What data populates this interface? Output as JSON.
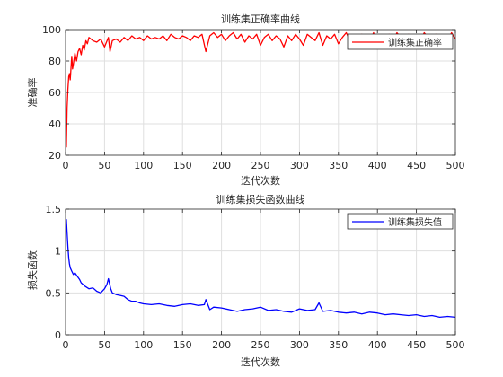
{
  "chart_data": [
    {
      "type": "line",
      "title": "训练集正确率曲线",
      "xlabel": "迭代次数",
      "ylabel": "准确率",
      "xlim": [
        0,
        500
      ],
      "ylim": [
        20,
        100
      ],
      "xticks": [
        0,
        50,
        100,
        150,
        200,
        250,
        300,
        350,
        400,
        450,
        500
      ],
      "yticks": [
        20,
        40,
        60,
        80,
        100
      ],
      "xtick_labels": [
        "0",
        "50",
        "100",
        "150",
        "200",
        "250",
        "300",
        "350",
        "400",
        "450",
        "500"
      ],
      "ytick_labels": [
        "20",
        "40",
        "60",
        "80",
        "100"
      ],
      "grid": true,
      "legend_position": "top-right",
      "series": [
        {
          "name": "训练集正确率",
          "color": "#ff0000",
          "x": [
            1,
            2,
            3,
            4,
            5,
            6,
            7,
            8,
            9,
            10,
            12,
            14,
            16,
            18,
            20,
            22,
            24,
            26,
            28,
            30,
            35,
            40,
            45,
            50,
            55,
            57,
            60,
            65,
            70,
            75,
            80,
            85,
            90,
            95,
            100,
            105,
            110,
            115,
            120,
            125,
            130,
            135,
            140,
            145,
            150,
            155,
            160,
            165,
            170,
            175,
            180,
            185,
            190,
            195,
            200,
            205,
            210,
            215,
            220,
            225,
            230,
            235,
            240,
            245,
            250,
            255,
            260,
            265,
            270,
            275,
            280,
            285,
            290,
            295,
            300,
            305,
            310,
            315,
            320,
            325,
            330,
            335,
            340,
            345,
            350,
            355,
            360,
            365,
            370,
            375,
            380,
            385,
            390,
            395,
            400,
            405,
            410,
            415,
            420,
            425,
            430,
            435,
            440,
            445,
            450,
            455,
            460,
            465,
            470,
            475,
            480,
            485,
            490,
            495,
            500
          ],
          "values": [
            25,
            50,
            62,
            70,
            72,
            68,
            76,
            83,
            75,
            78,
            85,
            80,
            86,
            88,
            84,
            90,
            87,
            93,
            91,
            95,
            93,
            92,
            94,
            89,
            95,
            86,
            93,
            94,
            92,
            95,
            93,
            96,
            94,
            95,
            93,
            96,
            94,
            95,
            94,
            96,
            93,
            97,
            95,
            94,
            96,
            95,
            93,
            96,
            95,
            97,
            86,
            96,
            98,
            95,
            97,
            93,
            96,
            98,
            94,
            97,
            92,
            96,
            94,
            97,
            90,
            95,
            97,
            93,
            96,
            94,
            89,
            96,
            93,
            97,
            94,
            90,
            97,
            95,
            93,
            98,
            90,
            96,
            94,
            97,
            91,
            95,
            98,
            93,
            96,
            90,
            97,
            94,
            92,
            98,
            88,
            96,
            94,
            97,
            92,
            98,
            95,
            91,
            97,
            94,
            96,
            93,
            98,
            95,
            91,
            97,
            94,
            96,
            93,
            98,
            94
          ]
        }
      ]
    },
    {
      "type": "line",
      "title": "训练集损失函数曲线",
      "xlabel": "迭代次数",
      "ylabel": "损失函数",
      "xlim": [
        0,
        500
      ],
      "ylim": [
        0,
        1.5
      ],
      "xticks": [
        0,
        50,
        100,
        150,
        200,
        250,
        300,
        350,
        400,
        450,
        500
      ],
      "yticks": [
        0,
        0.5,
        1,
        1.5
      ],
      "xtick_labels": [
        "0",
        "50",
        "100",
        "150",
        "200",
        "250",
        "300",
        "350",
        "400",
        "450",
        "500"
      ],
      "ytick_labels": [
        "0",
        "0.5",
        "1",
        "1.5"
      ],
      "grid": true,
      "legend_position": "top-right",
      "series": [
        {
          "name": "训练集损失值",
          "color": "#0000ff",
          "x": [
            1,
            2,
            3,
            4,
            5,
            6,
            8,
            10,
            12,
            15,
            18,
            20,
            25,
            30,
            35,
            40,
            45,
            50,
            53,
            55,
            58,
            60,
            65,
            70,
            75,
            80,
            85,
            90,
            95,
            100,
            110,
            120,
            130,
            140,
            150,
            160,
            170,
            178,
            180,
            185,
            190,
            200,
            210,
            220,
            230,
            240,
            250,
            260,
            270,
            280,
            290,
            300,
            310,
            320,
            325,
            330,
            340,
            350,
            360,
            370,
            380,
            390,
            400,
            410,
            420,
            430,
            440,
            450,
            460,
            470,
            480,
            490,
            500
          ],
          "values": [
            1.38,
            1.22,
            1.05,
            0.92,
            0.85,
            0.8,
            0.76,
            0.72,
            0.74,
            0.7,
            0.66,
            0.62,
            0.58,
            0.55,
            0.56,
            0.52,
            0.5,
            0.55,
            0.6,
            0.67,
            0.55,
            0.5,
            0.48,
            0.47,
            0.46,
            0.42,
            0.4,
            0.4,
            0.38,
            0.37,
            0.36,
            0.37,
            0.35,
            0.34,
            0.36,
            0.37,
            0.35,
            0.36,
            0.42,
            0.3,
            0.33,
            0.32,
            0.3,
            0.28,
            0.3,
            0.31,
            0.33,
            0.29,
            0.3,
            0.28,
            0.27,
            0.31,
            0.29,
            0.3,
            0.38,
            0.28,
            0.29,
            0.27,
            0.26,
            0.27,
            0.25,
            0.27,
            0.26,
            0.24,
            0.25,
            0.24,
            0.23,
            0.24,
            0.22,
            0.23,
            0.21,
            0.22,
            0.21
          ]
        }
      ]
    }
  ]
}
